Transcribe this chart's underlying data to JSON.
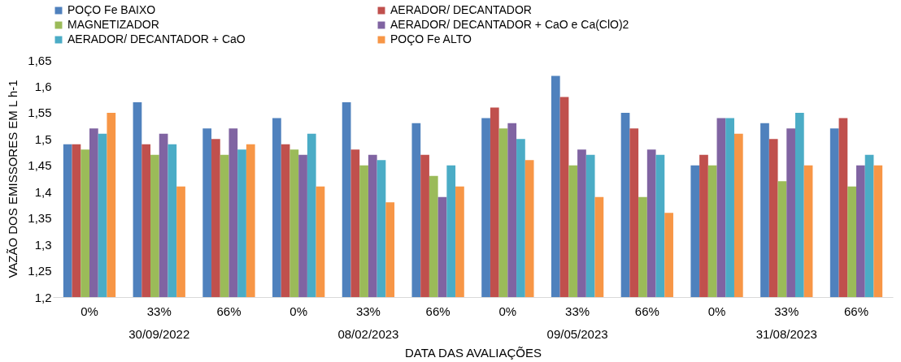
{
  "chart_data": {
    "type": "bar",
    "xlabel": "DATA DAS AVALIAÇÕES",
    "ylabel": "VAZÃO DOS EMISSORES EM L h-1",
    "categories": [
      "0%",
      "33%",
      "66%",
      "0%",
      "33%",
      "66%",
      "0%",
      "33%",
      "66%",
      "0%",
      "33%",
      "66%"
    ],
    "annotations": [
      "30/09/2022",
      "08/02/2023",
      "09/05/2023",
      "31/08/2023"
    ],
    "series": [
      {
        "name": "POÇO Fe BAIXO",
        "color": "#4f81bd",
        "values": [
          1.49,
          1.57,
          1.52,
          1.54,
          1.57,
          1.53,
          1.54,
          1.62,
          1.55,
          1.45,
          1.53,
          1.52
        ]
      },
      {
        "name": "AERADOR/ DECANTADOR",
        "color": "#c0504d",
        "values": [
          1.49,
          1.49,
          1.5,
          1.49,
          1.48,
          1.47,
          1.56,
          1.58,
          1.52,
          1.47,
          1.5,
          1.54
        ]
      },
      {
        "name": "MAGNETIZADOR",
        "color": "#9bbb59",
        "values": [
          1.48,
          1.47,
          1.47,
          1.48,
          1.45,
          1.43,
          1.52,
          1.45,
          1.39,
          1.45,
          1.42,
          1.41
        ]
      },
      {
        "name": "AERADOR/ DECANTADOR + CaO e Ca(ClO)2",
        "color": "#8064a2",
        "values": [
          1.52,
          1.51,
          1.52,
          1.47,
          1.47,
          1.39,
          1.53,
          1.48,
          1.48,
          1.54,
          1.52,
          1.45
        ]
      },
      {
        "name": "AERADOR/ DECANTADOR + CaO",
        "color": "#4bacc6",
        "values": [
          1.51,
          1.49,
          1.48,
          1.51,
          1.46,
          1.45,
          1.5,
          1.47,
          1.47,
          1.54,
          1.55,
          1.47
        ]
      },
      {
        "name": "POÇO Fe ALTO",
        "color": "#f79646",
        "values": [
          1.55,
          1.41,
          1.49,
          1.41,
          1.38,
          1.41,
          1.46,
          1.39,
          1.36,
          1.51,
          1.45,
          1.45
        ]
      }
    ],
    "ylim": [
      1.2,
      1.65
    ],
    "yticks": [
      {
        "value": 1.2,
        "label": "1,2"
      },
      {
        "value": 1.25,
        "label": "1,25"
      },
      {
        "value": 1.3,
        "label": "1,3"
      },
      {
        "value": 1.35,
        "label": "1,35"
      },
      {
        "value": 1.4,
        "label": "1,4"
      },
      {
        "value": 1.45,
        "label": "1,45"
      },
      {
        "value": 1.5,
        "label": "1,5"
      },
      {
        "value": 1.55,
        "label": "1,55"
      },
      {
        "value": 1.6,
        "label": "1,6"
      },
      {
        "value": 1.65,
        "label": "1,65"
      }
    ],
    "grid": false,
    "legend": "top"
  }
}
